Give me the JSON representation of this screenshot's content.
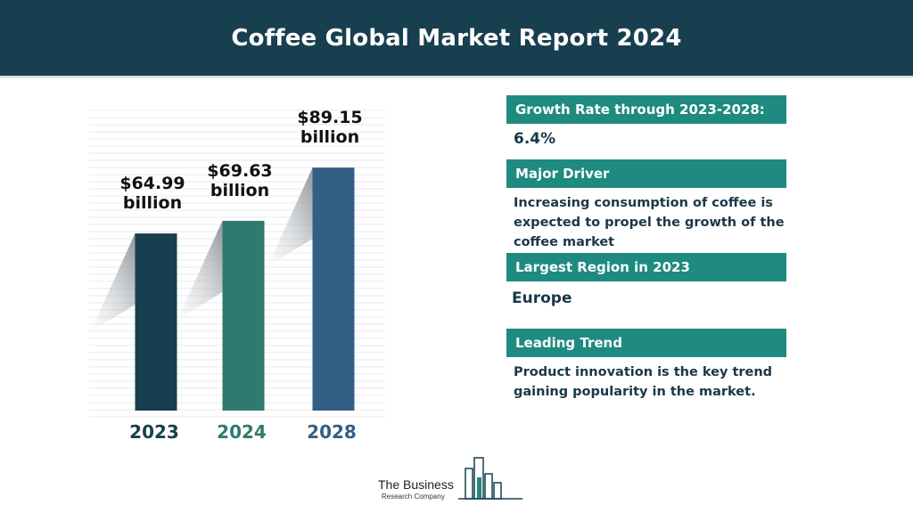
{
  "header": {
    "title": "Coffee Global Market Report 2024"
  },
  "chart_data": {
    "type": "bar",
    "categories": [
      "2023",
      "2024",
      "2028"
    ],
    "values": [
      64.99,
      69.63,
      89.15
    ],
    "value_labels": [
      [
        "$64.99",
        "billion"
      ],
      [
        "$69.63",
        "billion"
      ],
      [
        "$89.15",
        "billion"
      ]
    ],
    "colors": [
      "#173f4f",
      "#2e7a6e",
      "#345f84"
    ],
    "tick_colors": [
      "#173f4f",
      "#2e7a6e",
      "#345f84"
    ],
    "title": "",
    "xlabel": "",
    "ylabel": "",
    "grid": true
  },
  "info": [
    {
      "heading": "Growth Rate through 2023-2028:",
      "text": "6.4%"
    },
    {
      "heading": "Major Driver",
      "text": "Increasing consumption of coffee is expected to propel the growth of the coffee market"
    },
    {
      "heading": "Largest Region in 2023",
      "text": "Europe"
    },
    {
      "heading": "Leading Trend",
      "text": "Product innovation is the key trend gaining popularity in the market."
    }
  ],
  "logo": {
    "name": "The Business",
    "subtitle": "Research Company",
    "icon": "bar-chart-logo-icon",
    "colors": [
      "#1e8a80",
      "#173f4f"
    ]
  }
}
